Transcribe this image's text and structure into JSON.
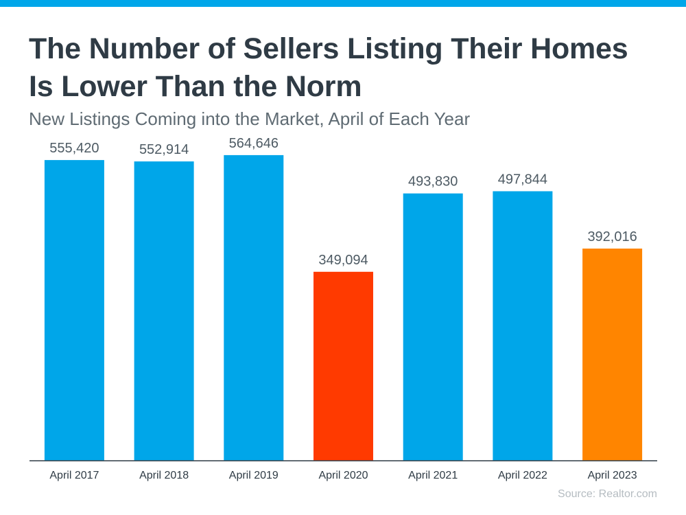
{
  "header": {
    "title_line1": "The Number of Sellers Listing Their Homes",
    "title_line2": "Is Lower Than the Norm",
    "subtitle": "New Listings Coming into the Market, April of Each Year"
  },
  "footer": {
    "source": "Source: Realtor.com"
  },
  "colors": {
    "accent_bar": "#00a6e9",
    "default_bar": "#00a6e9",
    "highlight_2020": "#ff3a00",
    "highlight_2023": "#ff8500"
  },
  "chart_data": {
    "type": "bar",
    "title": "The Number of Sellers Listing Their Homes Is Lower Than the Norm",
    "subtitle": "New Listings Coming into the Market, April of Each Year",
    "categories": [
      "April 2017",
      "April 2018",
      "April 2019",
      "April 2020",
      "April 2021",
      "April 2022",
      "April 2023"
    ],
    "values": [
      555420,
      552914,
      564646,
      349094,
      493830,
      497844,
      392016
    ],
    "value_labels": [
      "555,420",
      "552,914",
      "564,646",
      "349,094",
      "493,830",
      "497,844",
      "392,016"
    ],
    "bar_colors": [
      "#00a6e9",
      "#00a6e9",
      "#00a6e9",
      "#ff3a00",
      "#00a6e9",
      "#00a6e9",
      "#ff8500"
    ],
    "xlabel": "",
    "ylabel": "",
    "ylim": [
      0,
      600000
    ],
    "grid": false,
    "legend": "none"
  }
}
